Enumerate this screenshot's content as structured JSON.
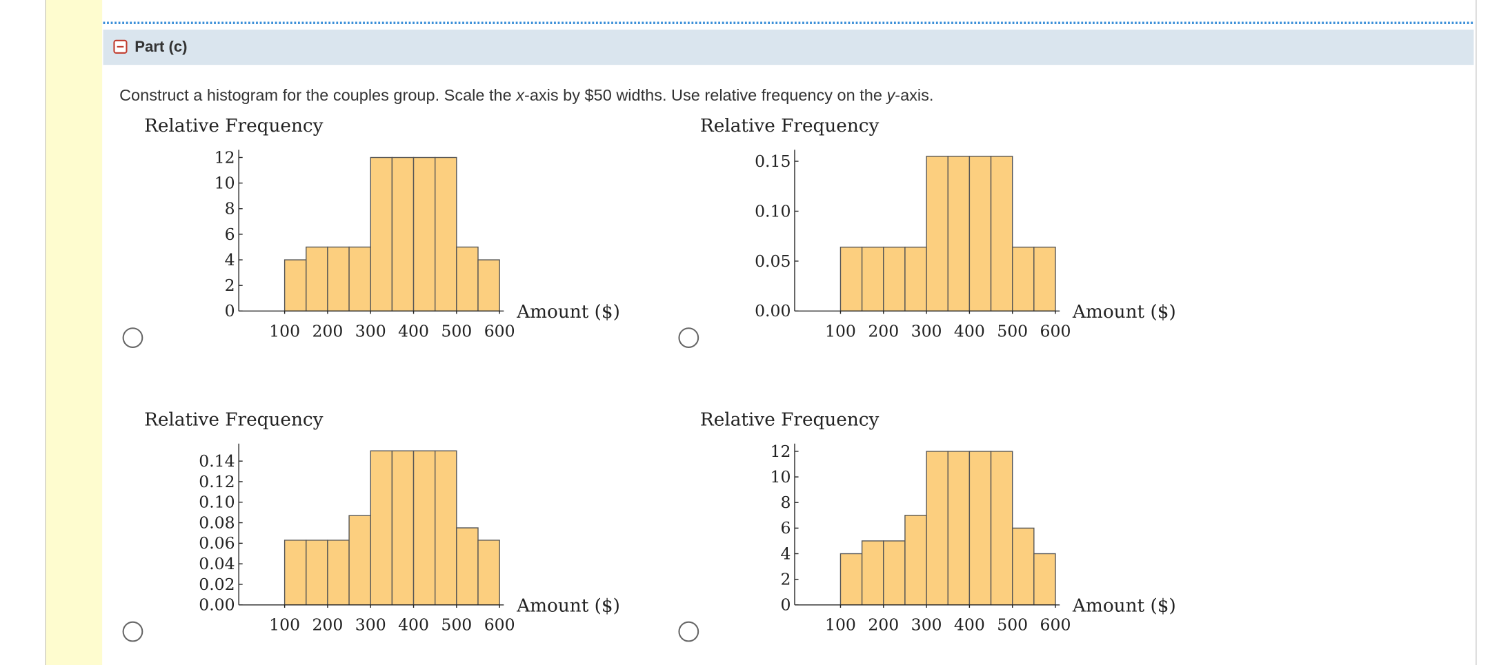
{
  "header": {
    "title": "Part (c)"
  },
  "question": {
    "parts": [
      "Construct a histogram for the couples group. Scale the ",
      "x",
      "-axis by $50 widths. Use relative frequency on the ",
      "y",
      "-axis."
    ]
  },
  "chart_data": [
    {
      "type": "histogram",
      "y_label": "Relative Frequency",
      "x_label": "Amount ($)",
      "color": "#fccf7f",
      "bins": [
        100,
        150,
        200,
        250,
        300,
        350,
        400,
        450,
        500,
        550,
        600
      ],
      "values": [
        4,
        5,
        5,
        5,
        12,
        12,
        12,
        12,
        5,
        4
      ],
      "xlim": [
        0,
        610
      ],
      "xticks": [
        100,
        200,
        300,
        400,
        500,
        600
      ],
      "ylim": [
        0,
        12.6
      ],
      "yticks": [
        0,
        2,
        4,
        6,
        8,
        10,
        12
      ]
    },
    {
      "type": "histogram",
      "y_label": "Relative Frequency",
      "x_label": "Amount ($)",
      "color": "#fccf7f",
      "bins": [
        100,
        150,
        200,
        250,
        300,
        350,
        400,
        450,
        500,
        550,
        600
      ],
      "values": [
        0.064,
        0.064,
        0.064,
        0.064,
        0.155,
        0.155,
        0.155,
        0.155,
        0.064,
        0.064
      ],
      "xlim": [
        0,
        610
      ],
      "xticks": [
        100,
        200,
        300,
        400,
        500,
        600
      ],
      "ylim": [
        0,
        0.1615
      ],
      "yticks": [
        {
          "value": 0,
          "label": "0.00"
        },
        0.05,
        {
          "value": 0.1,
          "label": "0.10"
        },
        0.15
      ]
    },
    {
      "type": "histogram",
      "y_label": "Relative Frequency",
      "x_label": "Amount ($)",
      "color": "#fccf7f",
      "bins": [
        100,
        150,
        200,
        250,
        300,
        350,
        400,
        450,
        500,
        550,
        600
      ],
      "values": [
        0.063,
        0.063,
        0.063,
        0.087,
        0.15,
        0.15,
        0.15,
        0.15,
        0.075,
        0.063
      ],
      "xlim": [
        0,
        610
      ],
      "xticks": [
        100,
        200,
        300,
        400,
        500,
        600
      ],
      "ylim": [
        0,
        0.157
      ],
      "yticks": [
        {
          "value": 0,
          "label": "0.00"
        },
        0.02,
        0.04,
        0.06,
        0.08,
        {
          "value": 0.1,
          "label": "0.10"
        },
        0.12,
        0.14
      ]
    },
    {
      "type": "histogram",
      "y_label": "Relative Frequency",
      "x_label": "Amount ($)",
      "color": "#fccf7f",
      "bins": [
        100,
        150,
        200,
        250,
        300,
        350,
        400,
        450,
        500,
        550,
        600
      ],
      "values": [
        4,
        5,
        5,
        7,
        12,
        12,
        12,
        12,
        6,
        4
      ],
      "xlim": [
        0,
        610
      ],
      "xticks": [
        100,
        200,
        300,
        400,
        500,
        600
      ],
      "ylim": [
        0,
        12.6
      ],
      "yticks": [
        0,
        2,
        4,
        6,
        8,
        10,
        12
      ]
    }
  ]
}
